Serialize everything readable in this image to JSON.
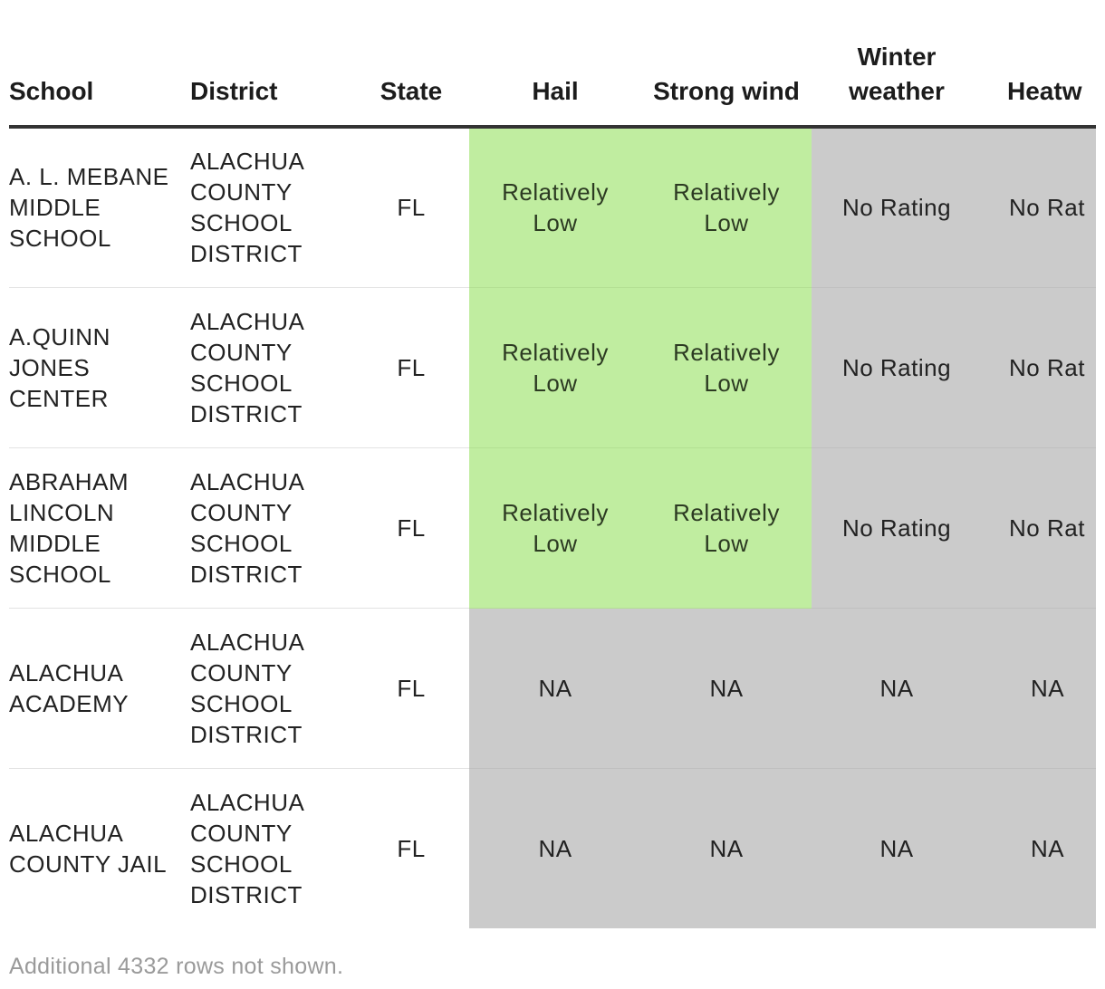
{
  "table": {
    "headers": {
      "school": "School",
      "district": "District",
      "state": "State",
      "hail": "Hail",
      "strong_wind": "Strong wind",
      "winter_weather": "Winter weather",
      "heatwave": "Heatw"
    },
    "rows": [
      {
        "school": "A. L. MEBANE MIDDLE SCHOOL",
        "district": "ALACHUA COUNTY SCHOOL DISTRICT",
        "state": "FL",
        "hail": "Relatively Low",
        "strong_wind": "Relatively Low",
        "winter_weather": "No Rating",
        "heatwave": "No Rat"
      },
      {
        "school": "A.QUINN JONES CENTER",
        "district": "ALACHUA COUNTY SCHOOL DISTRICT",
        "state": "FL",
        "hail": "Relatively Low",
        "strong_wind": "Relatively Low",
        "winter_weather": "No Rating",
        "heatwave": "No Rat"
      },
      {
        "school": "ABRAHAM LINCOLN MIDDLE SCHOOL",
        "district": "ALACHUA COUNTY SCHOOL DISTRICT",
        "state": "FL",
        "hail": "Relatively Low",
        "strong_wind": "Relatively Low",
        "winter_weather": "No Rating",
        "heatwave": "No Rat"
      },
      {
        "school": "ALACHUA ACADEMY",
        "district": "ALACHUA COUNTY SCHOOL DISTRICT",
        "state": "FL",
        "hail": "NA",
        "strong_wind": "NA",
        "winter_weather": "NA",
        "heatwave": "NA"
      },
      {
        "school": "ALACHUA COUNTY JAIL",
        "district": "ALACHUA COUNTY SCHOOL DISTRICT",
        "state": "FL",
        "hail": "NA",
        "strong_wind": "NA",
        "winter_weather": "NA",
        "heatwave": "NA"
      }
    ],
    "footnote": "Additional 4332 rows not shown."
  },
  "colors": {
    "relatively_low": "#c0eda0",
    "no_rating": "#cbcbcb",
    "header_rule": "#333333",
    "footnote_text": "#9a9a9a"
  }
}
